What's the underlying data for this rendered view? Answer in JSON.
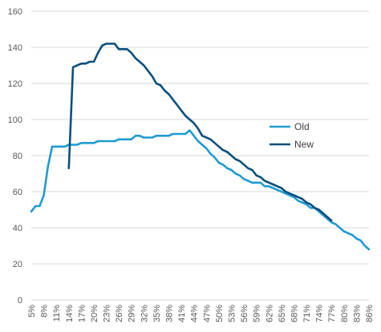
{
  "chart_data": {
    "type": "line",
    "title": "",
    "xlabel": "",
    "ylabel": "",
    "ylim": [
      0,
      160
    ],
    "yticks": [
      0,
      20,
      40,
      60,
      80,
      100,
      120,
      140,
      160
    ],
    "grid": "horizontal",
    "legend_position": "right",
    "x_start": 5,
    "x_end": 86,
    "x_tick_labels": [
      "5%",
      "8%",
      "11%",
      "14%",
      "17%",
      "20%",
      "23%",
      "26%",
      "29%",
      "32%",
      "35%",
      "38%",
      "41%",
      "44%",
      "47%",
      "50%",
      "53%",
      "56%",
      "59%",
      "62%",
      "65%",
      "68%",
      "71%",
      "74%",
      "77%",
      "80%",
      "83%",
      "86%"
    ],
    "series": [
      {
        "name": "Old",
        "color": "#1f9bd1",
        "x": [
          5,
          6,
          7,
          8,
          9,
          10,
          11,
          12,
          13,
          14,
          15,
          16,
          17,
          18,
          19,
          20,
          21,
          22,
          23,
          24,
          25,
          26,
          27,
          28,
          29,
          30,
          31,
          32,
          33,
          34,
          35,
          36,
          37,
          38,
          39,
          40,
          41,
          42,
          43,
          44,
          45,
          46,
          47,
          48,
          49,
          50,
          51,
          52,
          53,
          54,
          55,
          56,
          57,
          58,
          59,
          60,
          61,
          62,
          63,
          64,
          65,
          66,
          67,
          68,
          69,
          70,
          71,
          72,
          73,
          74,
          75,
          76,
          77,
          78,
          79,
          80,
          81,
          82,
          83,
          84,
          85,
          86
        ],
        "values": [
          49,
          52,
          52,
          58,
          74,
          85,
          85,
          85,
          85,
          86,
          86,
          86,
          87,
          87,
          87,
          87,
          88,
          88,
          88,
          88,
          88,
          89,
          89,
          89,
          89,
          91,
          91,
          90,
          90,
          90,
          91,
          91,
          91,
          91,
          92,
          92,
          92,
          92,
          94,
          91,
          88,
          86,
          84,
          81,
          79,
          76,
          75,
          73,
          72,
          70,
          69,
          67,
          66,
          65,
          65,
          65,
          63,
          63,
          62,
          61,
          60,
          59,
          58,
          57,
          55,
          54,
          53,
          51,
          51,
          49,
          47,
          45,
          43,
          42,
          40,
          38,
          37,
          36,
          34,
          33,
          30,
          28
        ]
      },
      {
        "name": "New",
        "color": "#0b4f7e",
        "x": [
          14,
          15,
          16,
          17,
          18,
          19,
          20,
          21,
          22,
          23,
          24,
          25,
          26,
          27,
          28,
          29,
          30,
          31,
          32,
          33,
          34,
          35,
          36,
          37,
          38,
          39,
          40,
          41,
          42,
          43,
          44,
          45,
          46,
          47,
          48,
          49,
          50,
          51,
          52,
          53,
          54,
          55,
          56,
          57,
          58,
          59,
          60,
          61,
          62,
          63,
          64,
          65,
          66,
          67,
          68,
          69,
          70,
          71,
          72,
          73,
          74,
          75,
          76,
          77
        ],
        "values": [
          73,
          129,
          130,
          131,
          131,
          132,
          132,
          137,
          141,
          142,
          142,
          142,
          139,
          139,
          139,
          137,
          134,
          132,
          130,
          127,
          124,
          120,
          119,
          116,
          114,
          111,
          108,
          105,
          102,
          100,
          98,
          95,
          91,
          90,
          89,
          87,
          85,
          83,
          82,
          80,
          78,
          77,
          75,
          73,
          72,
          69,
          68,
          66,
          65,
          64,
          63,
          62,
          60,
          59,
          58,
          57,
          56,
          54,
          53,
          51,
          50,
          48,
          46,
          44
        ]
      }
    ]
  }
}
